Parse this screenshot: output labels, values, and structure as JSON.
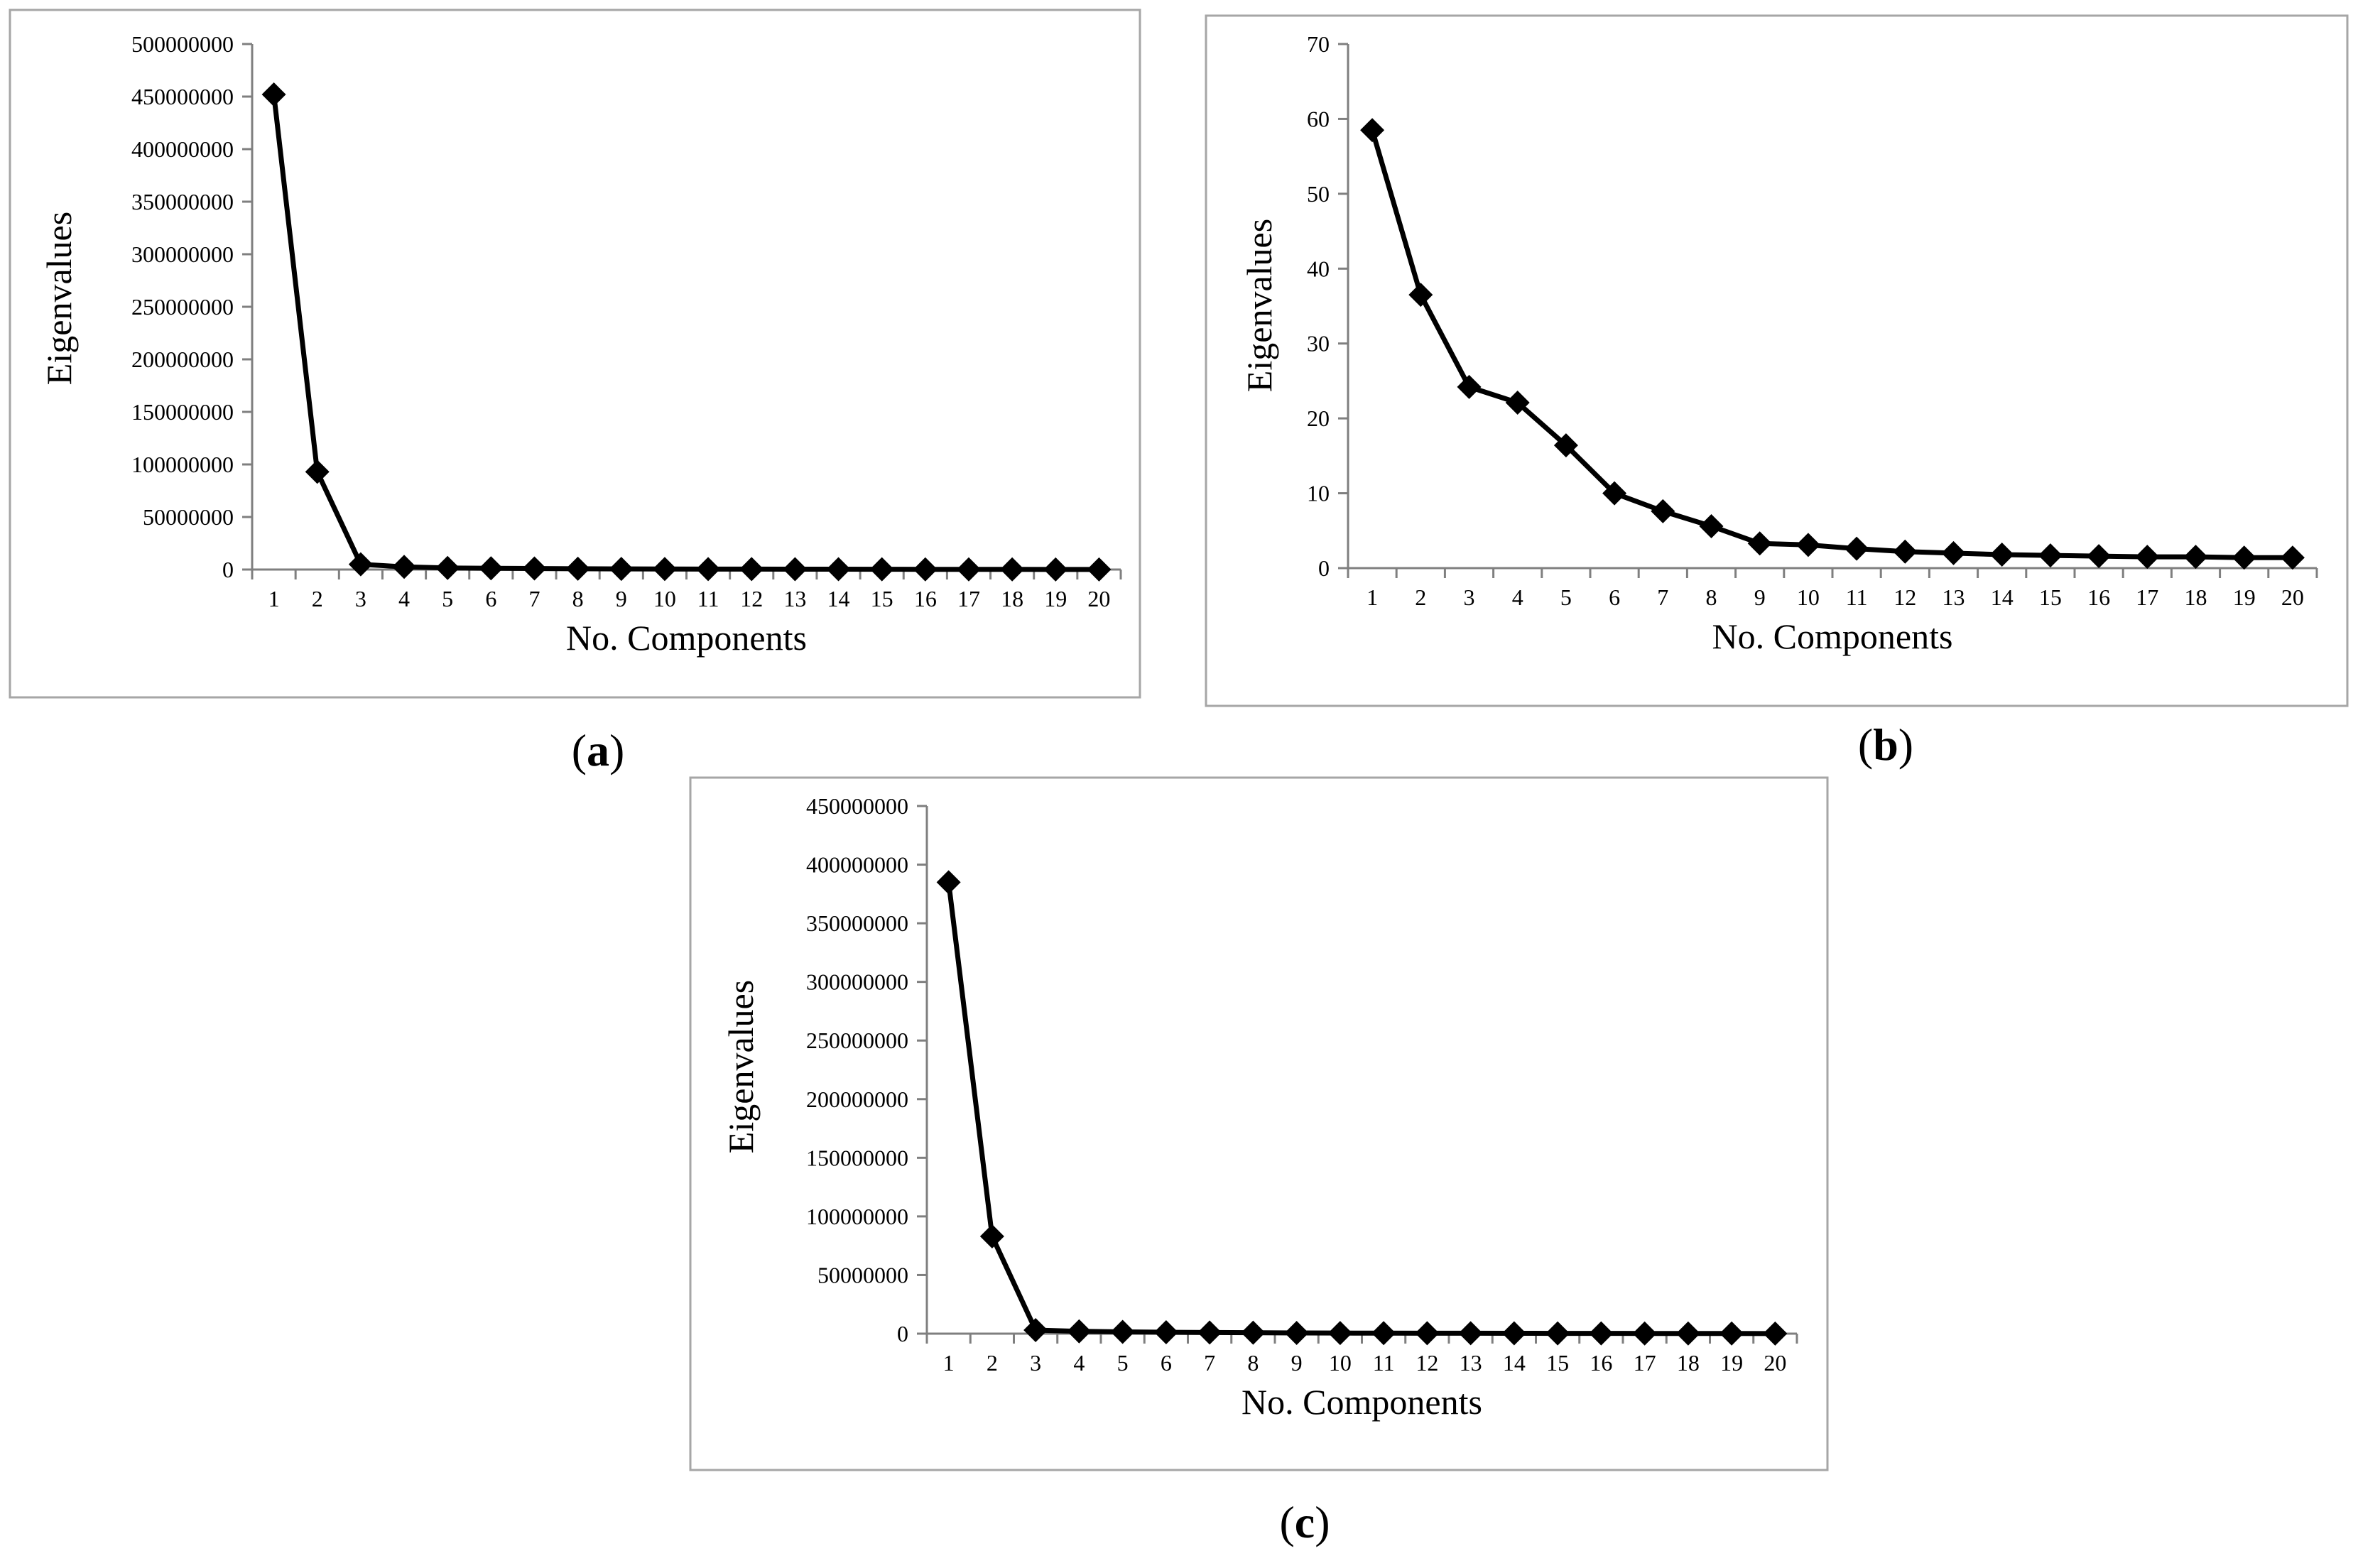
{
  "chart_data": [
    {
      "type": "line",
      "panel": "a",
      "panel_label": "(a)",
      "xlabel": "No. Components",
      "ylabel": "Eigenvalues",
      "x": [
        1,
        2,
        3,
        4,
        5,
        6,
        7,
        8,
        9,
        10,
        11,
        12,
        13,
        14,
        15,
        16,
        17,
        18,
        19,
        20
      ],
      "values": [
        452000000,
        93000000,
        5000000,
        2500000,
        1500000,
        1200000,
        1000000,
        800000,
        600000,
        500000,
        450000,
        400000,
        350000,
        300000,
        250000,
        200000,
        180000,
        150000,
        120000,
        100000
      ],
      "ylim": [
        0,
        500000000
      ],
      "yticks": [
        0,
        50000000,
        100000000,
        150000000,
        200000000,
        250000000,
        300000000,
        350000000,
        400000000,
        450000000,
        500000000
      ],
      "ytick_labels": [
        "0",
        "50000000",
        "100000000",
        "150000000",
        "200000000",
        "250000000",
        "300000000",
        "350000000",
        "400000000",
        "450000000",
        "500000000"
      ],
      "xtick_labels": [
        "1",
        "2",
        "3",
        "4",
        "5",
        "6",
        "7",
        "8",
        "9",
        "10",
        "11",
        "12",
        "13",
        "14",
        "15",
        "16",
        "17",
        "18",
        "19",
        "20"
      ],
      "grid": false,
      "marker": "diamond"
    },
    {
      "type": "line",
      "panel": "b",
      "panel_label": "(b)",
      "xlabel": "No. Components",
      "ylabel": "Eigenvalues",
      "x": [
        1,
        2,
        3,
        4,
        5,
        6,
        7,
        8,
        9,
        10,
        11,
        12,
        13,
        14,
        15,
        16,
        17,
        18,
        19,
        20
      ],
      "values": [
        58.5,
        36.5,
        24.2,
        22.1,
        16.4,
        10.0,
        7.6,
        5.6,
        3.3,
        3.1,
        2.6,
        2.2,
        2.0,
        1.8,
        1.7,
        1.6,
        1.5,
        1.5,
        1.4,
        1.4
      ],
      "ylim": [
        0,
        70
      ],
      "yticks": [
        0,
        10,
        20,
        30,
        40,
        50,
        60,
        70
      ],
      "ytick_labels": [
        "0",
        "10",
        "20",
        "30",
        "40",
        "50",
        "60",
        "70"
      ],
      "xtick_labels": [
        "1",
        "2",
        "3",
        "4",
        "5",
        "6",
        "7",
        "8",
        "9",
        "10",
        "11",
        "12",
        "13",
        "14",
        "15",
        "16",
        "17",
        "18",
        "19",
        "20"
      ],
      "grid": false,
      "marker": "diamond"
    },
    {
      "type": "line",
      "panel": "c",
      "panel_label": "(c)",
      "xlabel": "No. Components",
      "ylabel": "Eigenvalues",
      "x": [
        1,
        2,
        3,
        4,
        5,
        6,
        7,
        8,
        9,
        10,
        11,
        12,
        13,
        14,
        15,
        16,
        17,
        18,
        19,
        20
      ],
      "values": [
        385000000,
        83000000,
        3000000,
        2000000,
        1500000,
        1200000,
        1000000,
        800000,
        600000,
        500000,
        450000,
        400000,
        350000,
        300000,
        250000,
        200000,
        180000,
        150000,
        120000,
        100000
      ],
      "ylim": [
        0,
        450000000
      ],
      "yticks": [
        0,
        50000000,
        100000000,
        150000000,
        200000000,
        250000000,
        300000000,
        350000000,
        400000000,
        450000000
      ],
      "ytick_labels": [
        "0",
        "50000000",
        "100000000",
        "150000000",
        "200000000",
        "250000000",
        "300000000",
        "350000000",
        "400000000",
        "450000000"
      ],
      "xtick_labels": [
        "1",
        "2",
        "3",
        "4",
        "5",
        "6",
        "7",
        "8",
        "9",
        "10",
        "11",
        "12",
        "13",
        "14",
        "15",
        "16",
        "17",
        "18",
        "19",
        "20"
      ],
      "grid": false,
      "marker": "diamond"
    }
  ]
}
